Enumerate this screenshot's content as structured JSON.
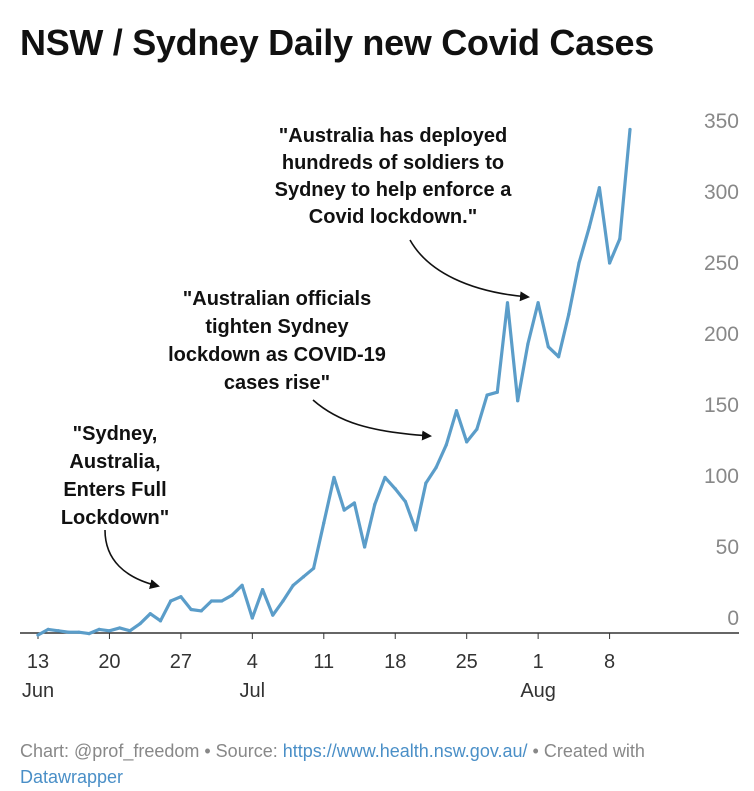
{
  "title": "NSW / Sydney Daily new Covid Cases",
  "footer": {
    "chart_prefix": "Chart: ",
    "credit": "@prof_freedom",
    "source_prefix": " • Source: ",
    "source_link": "https://www.health.nsw.gov.au/",
    "created_prefix": " • Created with",
    "created_link": "Datawrapper"
  },
  "colors": {
    "line": "#5b9dc9",
    "axis": "#333333",
    "text": "#111111",
    "muted": "#888888",
    "link": "#4a8fc7"
  },
  "chart_data": {
    "type": "line",
    "title": "NSW / Sydney Daily new Covid Cases",
    "xlabel": "",
    "ylabel": "",
    "ylim": [
      0,
      350
    ],
    "y_ticks": [
      0,
      50,
      100,
      150,
      200,
      250,
      300,
      350
    ],
    "x_start": "2021-06-13",
    "x_ticks": [
      {
        "date": "2021-06-13",
        "label": "13",
        "month": "Jun"
      },
      {
        "date": "2021-06-20",
        "label": "20",
        "month": ""
      },
      {
        "date": "2021-06-27",
        "label": "27",
        "month": ""
      },
      {
        "date": "2021-07-04",
        "label": "4",
        "month": "Jul"
      },
      {
        "date": "2021-07-11",
        "label": "11",
        "month": ""
      },
      {
        "date": "2021-07-18",
        "label": "18",
        "month": ""
      },
      {
        "date": "2021-07-25",
        "label": "25",
        "month": ""
      },
      {
        "date": "2021-08-01",
        "label": "1",
        "month": "Aug"
      },
      {
        "date": "2021-08-08",
        "label": "8",
        "month": ""
      }
    ],
    "grid": false,
    "series": [
      {
        "name": "",
        "points": [
          [
            "2021-06-13",
            -12
          ],
          [
            "2021-06-14",
            -8
          ],
          [
            "2021-06-15",
            -9
          ],
          [
            "2021-06-16",
            -10
          ],
          [
            "2021-06-17",
            -10
          ],
          [
            "2021-06-18",
            -11
          ],
          [
            "2021-06-19",
            -8
          ],
          [
            "2021-06-20",
            -9
          ],
          [
            "2021-06-21",
            -7
          ],
          [
            "2021-06-22",
            -9
          ],
          [
            "2021-06-23",
            -4
          ],
          [
            "2021-06-24",
            3
          ],
          [
            "2021-06-25",
            -2
          ],
          [
            "2021-06-26",
            12
          ],
          [
            "2021-06-27",
            15
          ],
          [
            "2021-06-28",
            6
          ],
          [
            "2021-06-29",
            5
          ],
          [
            "2021-06-30",
            12
          ],
          [
            "2021-07-01",
            12
          ],
          [
            "2021-07-02",
            16
          ],
          [
            "2021-07-03",
            23
          ],
          [
            "2021-07-04",
            0
          ],
          [
            "2021-07-05",
            20
          ],
          [
            "2021-07-06",
            2
          ],
          [
            "2021-07-07",
            12
          ],
          [
            "2021-07-08",
            23
          ],
          [
            "2021-07-09",
            29
          ],
          [
            "2021-07-10",
            35
          ],
          [
            "2021-07-11",
            67
          ],
          [
            "2021-07-12",
            99
          ],
          [
            "2021-07-13",
            76
          ],
          [
            "2021-07-14",
            81
          ],
          [
            "2021-07-15",
            50
          ],
          [
            "2021-07-16",
            80
          ],
          [
            "2021-07-17",
            99
          ],
          [
            "2021-07-18",
            91
          ],
          [
            "2021-07-19",
            82
          ],
          [
            "2021-07-20",
            62
          ],
          [
            "2021-07-21",
            95
          ],
          [
            "2021-07-22",
            106
          ],
          [
            "2021-07-23",
            122
          ],
          [
            "2021-07-24",
            146
          ],
          [
            "2021-07-25",
            124
          ],
          [
            "2021-07-26",
            133
          ],
          [
            "2021-07-27",
            157
          ],
          [
            "2021-07-28",
            159
          ],
          [
            "2021-07-29",
            222
          ],
          [
            "2021-07-30",
            153
          ],
          [
            "2021-07-31",
            193
          ],
          [
            "2021-08-01",
            222
          ],
          [
            "2021-08-02",
            191
          ],
          [
            "2021-08-03",
            184
          ],
          [
            "2021-08-04",
            214
          ],
          [
            "2021-08-05",
            250
          ],
          [
            "2021-08-06",
            275
          ],
          [
            "2021-08-07",
            303
          ],
          [
            "2021-08-08",
            250
          ],
          [
            "2021-08-09",
            267
          ],
          [
            "2021-08-10",
            344
          ]
        ]
      }
    ],
    "annotations": [
      {
        "lines": [
          "\"Sydney,",
          "Australia,",
          "Enters Full",
          "Lockdown\""
        ]
      },
      {
        "lines": [
          "\"Australian officials",
          "tighten Sydney",
          "lockdown as COVID-19",
          "cases rise\""
        ]
      },
      {
        "lines": [
          "\"Australia has deployed",
          "hundreds of soldiers to",
          "Sydney to help enforce a",
          "Covid lockdown.\""
        ]
      }
    ]
  }
}
